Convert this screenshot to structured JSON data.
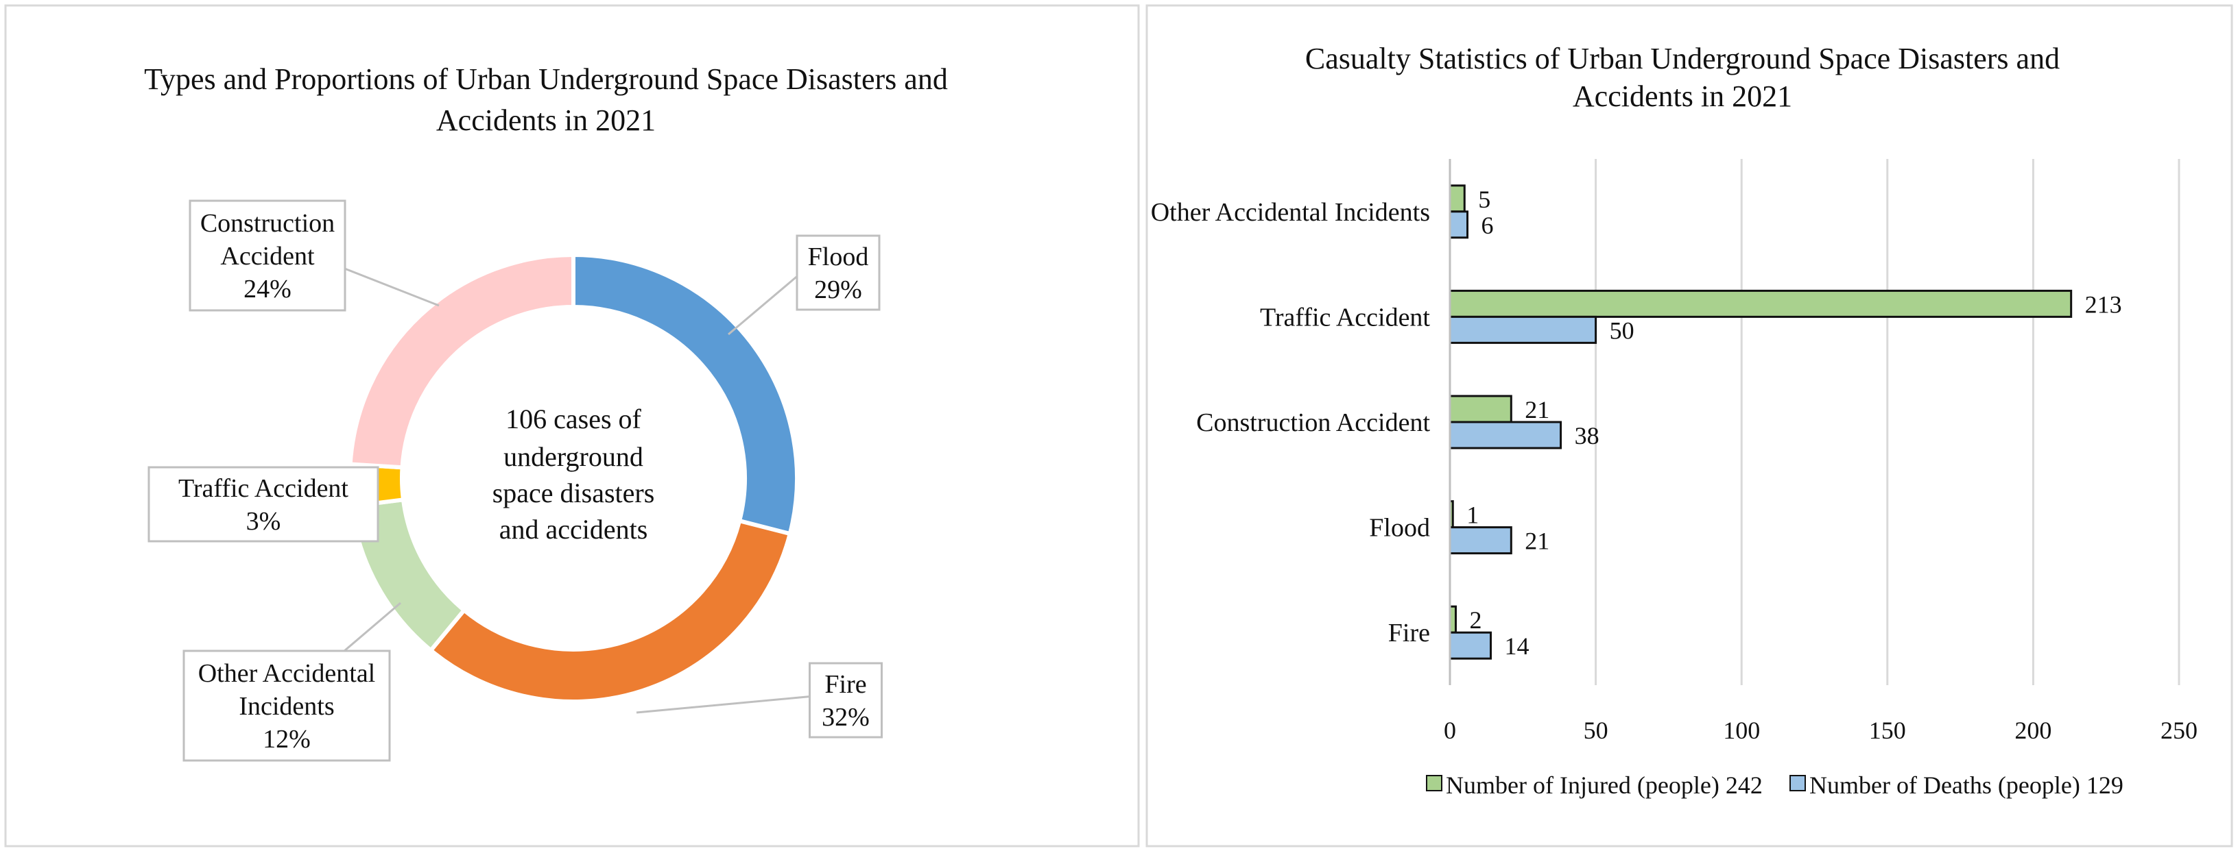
{
  "chart_data": [
    {
      "type": "pie",
      "variant": "donut",
      "title_lines": [
        "Types and Proportions of Urban Underground Space Disasters and",
        "Accidents in 2021"
      ],
      "center_text_lines": [
        "106 cases of",
        "underground",
        "space disasters",
        "and accidents"
      ],
      "slices": [
        {
          "name": "Flood",
          "name_lines": [
            "Flood"
          ],
          "percent": 29,
          "label": "29%",
          "color": "#5B9BD5"
        },
        {
          "name": "Fire",
          "name_lines": [
            "Fire"
          ],
          "percent": 32,
          "label": "32%",
          "color": "#ED7D31"
        },
        {
          "name": "Other Accidental Incidents",
          "name_lines": [
            "Other Accidental",
            "Incidents"
          ],
          "percent": 12,
          "label": "12%",
          "color": "#C5E0B4"
        },
        {
          "name": "Traffic Accident",
          "name_lines": [
            "Traffic Accident"
          ],
          "percent": 3,
          "label": "3%",
          "color": "#FFC000"
        },
        {
          "name": "Construction Accident",
          "name_lines": [
            "Construction",
            "Accident"
          ],
          "percent": 24,
          "label": "24%",
          "color": "#FFCCCC"
        }
      ]
    },
    {
      "type": "bar",
      "orientation": "horizontal",
      "title_lines": [
        "Casualty Statistics of Urban Underground Space Disasters and",
        "Accidents in 2021"
      ],
      "categories": [
        "Other Accidental Incidents",
        "Traffic Accident",
        "Construction Accident",
        "Flood",
        "Fire"
      ],
      "series": [
        {
          "name": "Number of Injured (people) 242",
          "color": "#A9D18E",
          "values": [
            5,
            213,
            21,
            1,
            2
          ]
        },
        {
          "name": "Number of Deaths (people) 129",
          "color": "#9DC3E6",
          "values": [
            6,
            50,
            38,
            21,
            14
          ]
        }
      ],
      "xlim": [
        0,
        250
      ],
      "xticks": [
        0,
        50,
        100,
        150,
        200,
        250
      ],
      "grid": true,
      "legend_position": "bottom"
    }
  ]
}
